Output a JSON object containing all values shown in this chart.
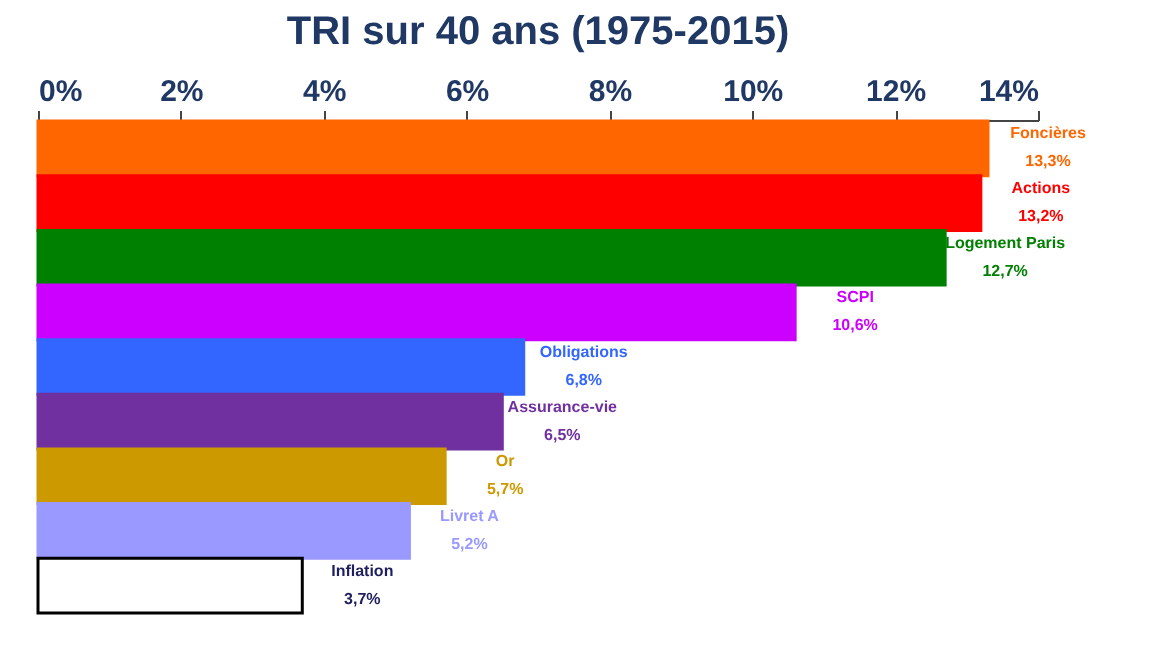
{
  "chart_data": {
    "type": "bar",
    "orientation": "horizontal",
    "title": "TRI sur 40 ans (1975-2015)",
    "categories": [
      "Foncières",
      "Actions",
      "Logement Paris",
      "SCPI",
      "Obligations",
      "Assurance-vie",
      "Or",
      "Livret A",
      "Inflation"
    ],
    "values": [
      13.3,
      13.2,
      12.7,
      10.6,
      6.8,
      6.5,
      5.7,
      5.2,
      3.7
    ],
    "value_labels": [
      "13,3%",
      "13,2%",
      "12,7%",
      "10,6%",
      "6,8%",
      "6,5%",
      "5,7%",
      "5,2%",
      "3,7%"
    ],
    "colors": [
      "#ff6600",
      "#ff0000",
      "#008000",
      "#cc00ff",
      "#3366ff",
      "#7030a0",
      "#cc9900",
      "#9999ff",
      "#ffffff"
    ],
    "xlim": [
      0,
      14
    ],
    "xticks": [
      {
        "value": 0,
        "label": "0%"
      },
      {
        "value": 2,
        "label": "2%"
      },
      {
        "value": 4,
        "label": "4%"
      },
      {
        "value": 6,
        "label": "6%"
      },
      {
        "value": 8,
        "label": "8%"
      },
      {
        "value": 10,
        "label": "10%"
      },
      {
        "value": 12,
        "label": "12%"
      },
      {
        "value": 14,
        "label": "14%"
      }
    ],
    "grid": false,
    "legend": false
  }
}
